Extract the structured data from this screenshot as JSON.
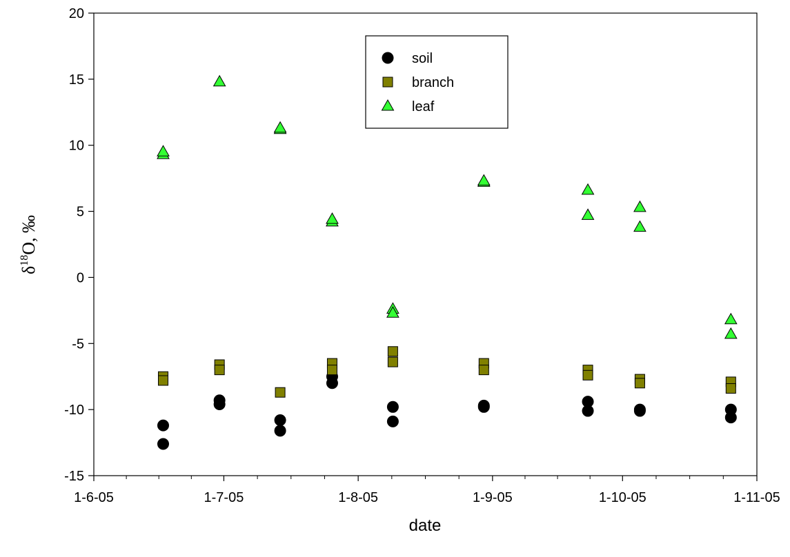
{
  "chart_data": {
    "type": "scatter",
    "xlabel": "date",
    "ylabel": {
      "prefix": "δ",
      "superscript": "18",
      "suffix": "O,  ‰"
    },
    "x_axis_type": "date",
    "xlim": [
      "2005-06-01",
      "2005-11-01"
    ],
    "ylim": [
      -15,
      20
    ],
    "x_ticks": [
      "2005-06-01",
      "2005-07-01",
      "2005-08-01",
      "2005-09-01",
      "2005-10-01",
      "2005-11-01"
    ],
    "x_tick_labels": [
      "1-6-05",
      "1-7-05",
      "1-8-05",
      "1-9-05",
      "1-10-05",
      "1-11-05"
    ],
    "y_ticks": [
      -15,
      -10,
      -5,
      0,
      5,
      10,
      15,
      20
    ],
    "y_tick_labels": [
      "-15",
      "-10",
      "-5",
      "0",
      "5",
      "10",
      "15",
      "20"
    ],
    "grid": false,
    "legend_position": "top-center",
    "series": [
      {
        "name": "soil",
        "marker": "circle",
        "color": "#000000",
        "points": [
          {
            "x": "2005-06-17",
            "y": -11.2
          },
          {
            "x": "2005-06-17",
            "y": -12.6
          },
          {
            "x": "2005-06-30",
            "y": -9.3
          },
          {
            "x": "2005-06-30",
            "y": -9.6
          },
          {
            "x": "2005-07-14",
            "y": -10.8
          },
          {
            "x": "2005-07-14",
            "y": -11.6
          },
          {
            "x": "2005-07-26",
            "y": -7.5
          },
          {
            "x": "2005-07-26",
            "y": -8.0
          },
          {
            "x": "2005-08-09",
            "y": -9.8
          },
          {
            "x": "2005-08-09",
            "y": -10.9
          },
          {
            "x": "2005-08-30",
            "y": -9.7
          },
          {
            "x": "2005-08-30",
            "y": -9.8
          },
          {
            "x": "2005-09-23",
            "y": -9.4
          },
          {
            "x": "2005-09-23",
            "y": -10.1
          },
          {
            "x": "2005-10-05",
            "y": -10.0
          },
          {
            "x": "2005-10-05",
            "y": -10.1
          },
          {
            "x": "2005-10-26",
            "y": -10.0
          },
          {
            "x": "2005-10-26",
            "y": -10.6
          }
        ]
      },
      {
        "name": "branch",
        "marker": "square",
        "color": "#808000",
        "points": [
          {
            "x": "2005-06-17",
            "y": -7.5
          },
          {
            "x": "2005-06-17",
            "y": -7.8
          },
          {
            "x": "2005-06-30",
            "y": -6.6
          },
          {
            "x": "2005-06-30",
            "y": -7.0
          },
          {
            "x": "2005-07-14",
            "y": -8.7
          },
          {
            "x": "2005-07-26",
            "y": -6.5
          },
          {
            "x": "2005-07-26",
            "y": -7.0
          },
          {
            "x": "2005-08-09",
            "y": -5.6
          },
          {
            "x": "2005-08-09",
            "y": -6.4
          },
          {
            "x": "2005-08-30",
            "y": -6.5
          },
          {
            "x": "2005-08-30",
            "y": -7.0
          },
          {
            "x": "2005-09-23",
            "y": -7.0
          },
          {
            "x": "2005-09-23",
            "y": -7.4
          },
          {
            "x": "2005-10-05",
            "y": -7.7
          },
          {
            "x": "2005-10-05",
            "y": -8.0
          },
          {
            "x": "2005-10-26",
            "y": -7.9
          },
          {
            "x": "2005-10-26",
            "y": -8.4
          }
        ]
      },
      {
        "name": "leaf",
        "marker": "triangle",
        "color": "#33ff33",
        "points": [
          {
            "x": "2005-06-17",
            "y": 9.3
          },
          {
            "x": "2005-06-17",
            "y": 9.5
          },
          {
            "x": "2005-06-30",
            "y": 14.8
          },
          {
            "x": "2005-07-14",
            "y": 11.2
          },
          {
            "x": "2005-07-14",
            "y": 11.3
          },
          {
            "x": "2005-07-26",
            "y": 4.2
          },
          {
            "x": "2005-07-26",
            "y": 4.4
          },
          {
            "x": "2005-08-09",
            "y": -2.4
          },
          {
            "x": "2005-08-09",
            "y": -2.7
          },
          {
            "x": "2005-08-30",
            "y": 7.2
          },
          {
            "x": "2005-08-30",
            "y": 7.3
          },
          {
            "x": "2005-09-23",
            "y": 6.6
          },
          {
            "x": "2005-09-23",
            "y": 4.7
          },
          {
            "x": "2005-10-05",
            "y": 5.3
          },
          {
            "x": "2005-10-05",
            "y": 3.8
          },
          {
            "x": "2005-10-26",
            "y": -3.2
          },
          {
            "x": "2005-10-26",
            "y": -4.3
          }
        ]
      }
    ]
  }
}
